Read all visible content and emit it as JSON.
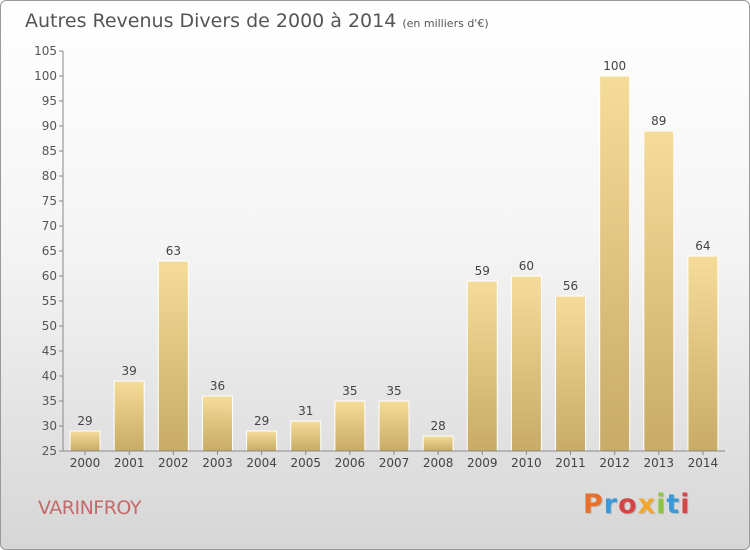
{
  "header": {
    "title": "Autres Revenus Divers de 2000 à 2014",
    "subtitle": "(en milliers d'€)"
  },
  "footer": {
    "commune": "VARINFROY",
    "brand": "Proxiti",
    "brand_colors": [
      "#e8702a",
      "#3a9ad9",
      "#d64545",
      "#f0a830",
      "#8cc63f",
      "#3a9ad9",
      "#d64545"
    ]
  },
  "colors": {
    "bar_top": "#f5dc98",
    "bar_bottom": "#c7ab66",
    "commune_text": "#c56a6a"
  },
  "chart_data": {
    "type": "bar",
    "categories": [
      "2000",
      "2001",
      "2002",
      "2003",
      "2004",
      "2005",
      "2006",
      "2007",
      "2008",
      "2009",
      "2010",
      "2011",
      "2012",
      "2013",
      "2014"
    ],
    "values": [
      29,
      39,
      63,
      36,
      29,
      31,
      35,
      35,
      28,
      59,
      60,
      56,
      100,
      89,
      64
    ],
    "ylim": [
      25,
      105
    ],
    "yticks": [
      25,
      30,
      35,
      40,
      45,
      50,
      55,
      60,
      65,
      70,
      75,
      80,
      85,
      90,
      95,
      100,
      105
    ],
    "grid": false
  }
}
